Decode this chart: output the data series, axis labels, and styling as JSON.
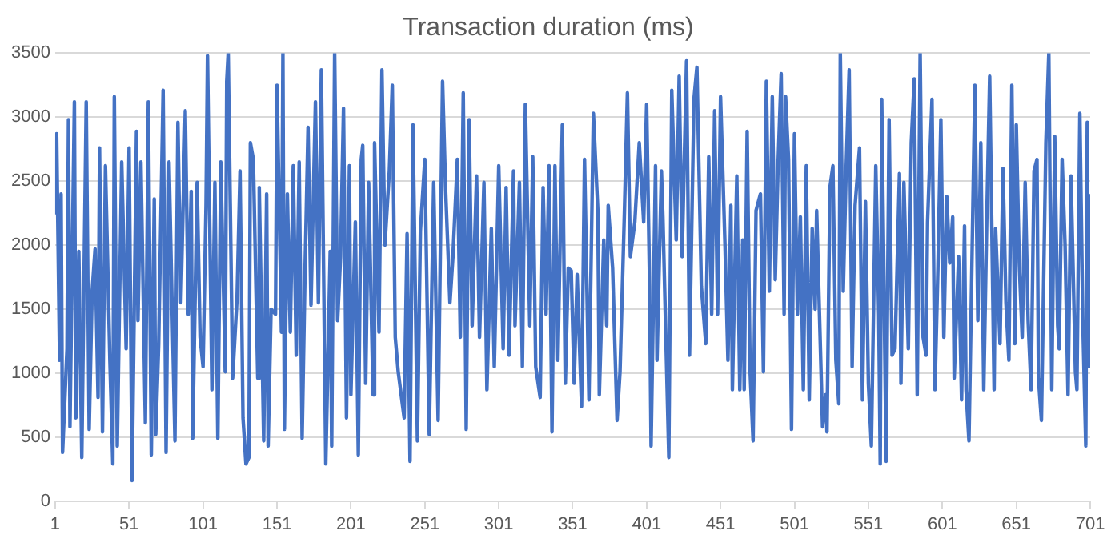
{
  "chart_data": {
    "type": "line",
    "title": "Transaction duration (ms)",
    "xlim": [
      1,
      701
    ],
    "xticks": [
      1,
      51,
      101,
      151,
      201,
      251,
      301,
      351,
      401,
      451,
      501,
      551,
      601,
      651,
      701
    ],
    "ylim": [
      0,
      3500
    ],
    "yticks": [
      0,
      500,
      1000,
      1500,
      2000,
      2500,
      3000,
      3500
    ],
    "grid": "y",
    "legend": false,
    "marker": "none",
    "line_style": "solid",
    "series": [
      {
        "color": "#4472c4",
        "x": [
          1,
          2,
          4,
          5,
          6,
          9,
          10,
          11,
          14,
          15,
          17,
          19,
          22,
          24,
          26,
          28,
          30,
          31,
          33,
          35,
          38,
          40,
          41,
          43,
          46,
          49,
          51,
          53,
          56,
          57,
          59,
          62,
          64,
          66,
          68,
          69,
          71,
          74,
          76,
          78,
          82,
          84,
          86,
          89,
          91,
          93,
          94,
          97,
          99,
          101,
          103,
          104,
          107,
          109,
          111,
          113,
          116,
          117,
          118,
          121,
          124,
          126,
          128,
          130,
          132,
          133,
          135,
          138,
          139,
          142,
          144,
          145,
          147,
          150,
          151,
          154,
          155,
          156,
          158,
          160,
          162,
          164,
          166,
          168,
          170,
          172,
          174,
          177,
          179,
          181,
          184,
          187,
          188,
          190,
          192,
          194,
          196,
          198,
          200,
          201,
          204,
          206,
          208,
          209,
          211,
          213,
          216,
          217,
          220,
          222,
          224,
          227,
          229,
          231,
          233,
          237,
          239,
          241,
          243,
          246,
          248,
          251,
          254,
          257,
          260,
          263,
          265,
          268,
          270,
          273,
          275,
          277,
          279,
          281,
          283,
          286,
          288,
          291,
          293,
          296,
          298,
          301,
          304,
          306,
          308,
          311,
          312,
          315,
          317,
          319,
          322,
          324,
          326,
          329,
          331,
          333,
          335,
          337,
          339,
          341,
          344,
          346,
          348,
          350,
          352,
          354,
          357,
          359,
          362,
          365,
          368,
          369,
          372,
          374,
          375,
          378,
          381,
          383,
          386,
          388,
          390,
          393,
          396,
          399,
          401,
          403,
          404,
          407,
          408,
          411,
          412,
          414,
          416,
          418,
          421,
          423,
          425,
          428,
          430,
          433,
          435,
          438,
          441,
          443,
          445,
          447,
          449,
          451,
          454,
          456,
          458,
          459,
          462,
          464,
          466,
          467,
          469,
          471,
          473,
          475,
          478,
          480,
          482,
          484,
          486,
          488,
          490,
          492,
          494,
          495,
          497,
          499,
          501,
          503,
          505,
          507,
          509,
          511,
          513,
          515,
          516,
          520,
          522,
          523,
          525,
          527,
          529,
          531,
          532,
          534,
          536,
          538,
          540,
          542,
          545,
          547,
          549,
          551,
          553,
          556,
          558,
          559,
          560,
          563,
          565,
          567,
          569,
          572,
          573,
          575,
          578,
          580,
          582,
          584,
          586,
          588,
          590,
          591,
          594,
          596,
          598,
          600,
          602,
          604,
          606,
          608,
          609,
          612,
          614,
          616,
          617,
          619,
          623,
          625,
          627,
          629,
          631,
          633,
          636,
          637,
          640,
          642,
          644,
          646,
          648,
          650,
          651,
          653,
          655,
          657,
          659,
          661,
          663,
          665,
          666,
          668,
          671,
          673,
          675,
          677,
          679,
          680,
          682,
          684,
          686,
          688,
          691,
          692,
          694,
          696,
          698,
          699,
          700,
          701
        ],
        "values": [
          2240,
          2870,
          1100,
          2400,
          380,
          1190,
          2980,
          580,
          3120,
          650,
          1950,
          340,
          3120,
          560,
          1640,
          1970,
          810,
          2760,
          540,
          2620,
          1100,
          290,
          3160,
          430,
          2650,
          1190,
          2760,
          160,
          2890,
          1410,
          2650,
          610,
          3120,
          360,
          2360,
          520,
          1230,
          3210,
          380,
          2650,
          470,
          2960,
          1550,
          3050,
          1460,
          2420,
          490,
          2490,
          1280,
          1050,
          2310,
          3480,
          870,
          2490,
          490,
          2650,
          1010,
          3280,
          3500,
          960,
          1590,
          2580,
          650,
          290,
          340,
          2800,
          2670,
          960,
          2450,
          470,
          2400,
          430,
          1500,
          1460,
          3250,
          1320,
          3500,
          560,
          2400,
          1320,
          2620,
          1140,
          2650,
          490,
          1820,
          2920,
          1530,
          3120,
          1550,
          3370,
          290,
          1950,
          430,
          3500,
          1410,
          1910,
          3070,
          650,
          2620,
          830,
          2180,
          360,
          2670,
          2780,
          920,
          2490,
          830,
          2800,
          1320,
          3370,
          2000,
          2580,
          3250,
          1280,
          1010,
          650,
          2090,
          310,
          2940,
          470,
          2110,
          2670,
          520,
          2490,
          630,
          3280,
          2450,
          1550,
          1910,
          2670,
          1280,
          3190,
          560,
          2980,
          1370,
          2540,
          1280,
          2490,
          870,
          2130,
          1050,
          2620,
          1190,
          2450,
          1140,
          2580,
          1370,
          2490,
          1050,
          3100,
          1370,
          2690,
          1050,
          810,
          2450,
          1460,
          2620,
          540,
          2620,
          1100,
          2940,
          920,
          1820,
          1800,
          920,
          1770,
          740,
          2670,
          790,
          3030,
          2270,
          830,
          2040,
          1370,
          2310,
          1820,
          630,
          1010,
          2270,
          3190,
          1910,
          2180,
          2800,
          2180,
          3100,
          1680,
          430,
          2620,
          1100,
          2580,
          2220,
          1280,
          340,
          3210,
          2040,
          3320,
          1910,
          3440,
          1140,
          3140,
          3390,
          1680,
          1230,
          2690,
          1460,
          3050,
          1460,
          3160,
          2000,
          1100,
          2310,
          870,
          2540,
          870,
          2040,
          870,
          2890,
          1010,
          470,
          2270,
          2400,
          1010,
          3280,
          1640,
          3160,
          1730,
          2670,
          3340,
          1460,
          3160,
          2670,
          560,
          2870,
          1460,
          2220,
          870,
          2620,
          790,
          2130,
          1500,
          2270,
          580,
          830,
          540,
          2450,
          2620,
          1100,
          760,
          3500,
          1640,
          2620,
          3370,
          1050,
          2310,
          2760,
          790,
          2340,
          920,
          430,
          2620,
          1460,
          290,
          3140,
          310,
          2980,
          1140,
          1190,
          2560,
          920,
          2490,
          1190,
          2800,
          3300,
          830,
          3500,
          1280,
          1140,
          2180,
          3140,
          870,
          1820,
          2980,
          1280,
          2380,
          1860,
          2220,
          960,
          1910,
          790,
          2150,
          870,
          470,
          3250,
          1410,
          2800,
          870,
          2180,
          3320,
          870,
          2130,
          1230,
          2600,
          1550,
          1100,
          3250,
          1230,
          2940,
          1860,
          1280,
          2490,
          1410,
          870,
          2580,
          2670,
          960,
          630,
          2800,
          3500,
          870,
          2850,
          1370,
          1190,
          2670,
          2000,
          830,
          2540,
          1010,
          870,
          3030,
          1410,
          430,
          2960,
          1050,
          2400
        ]
      }
    ]
  }
}
